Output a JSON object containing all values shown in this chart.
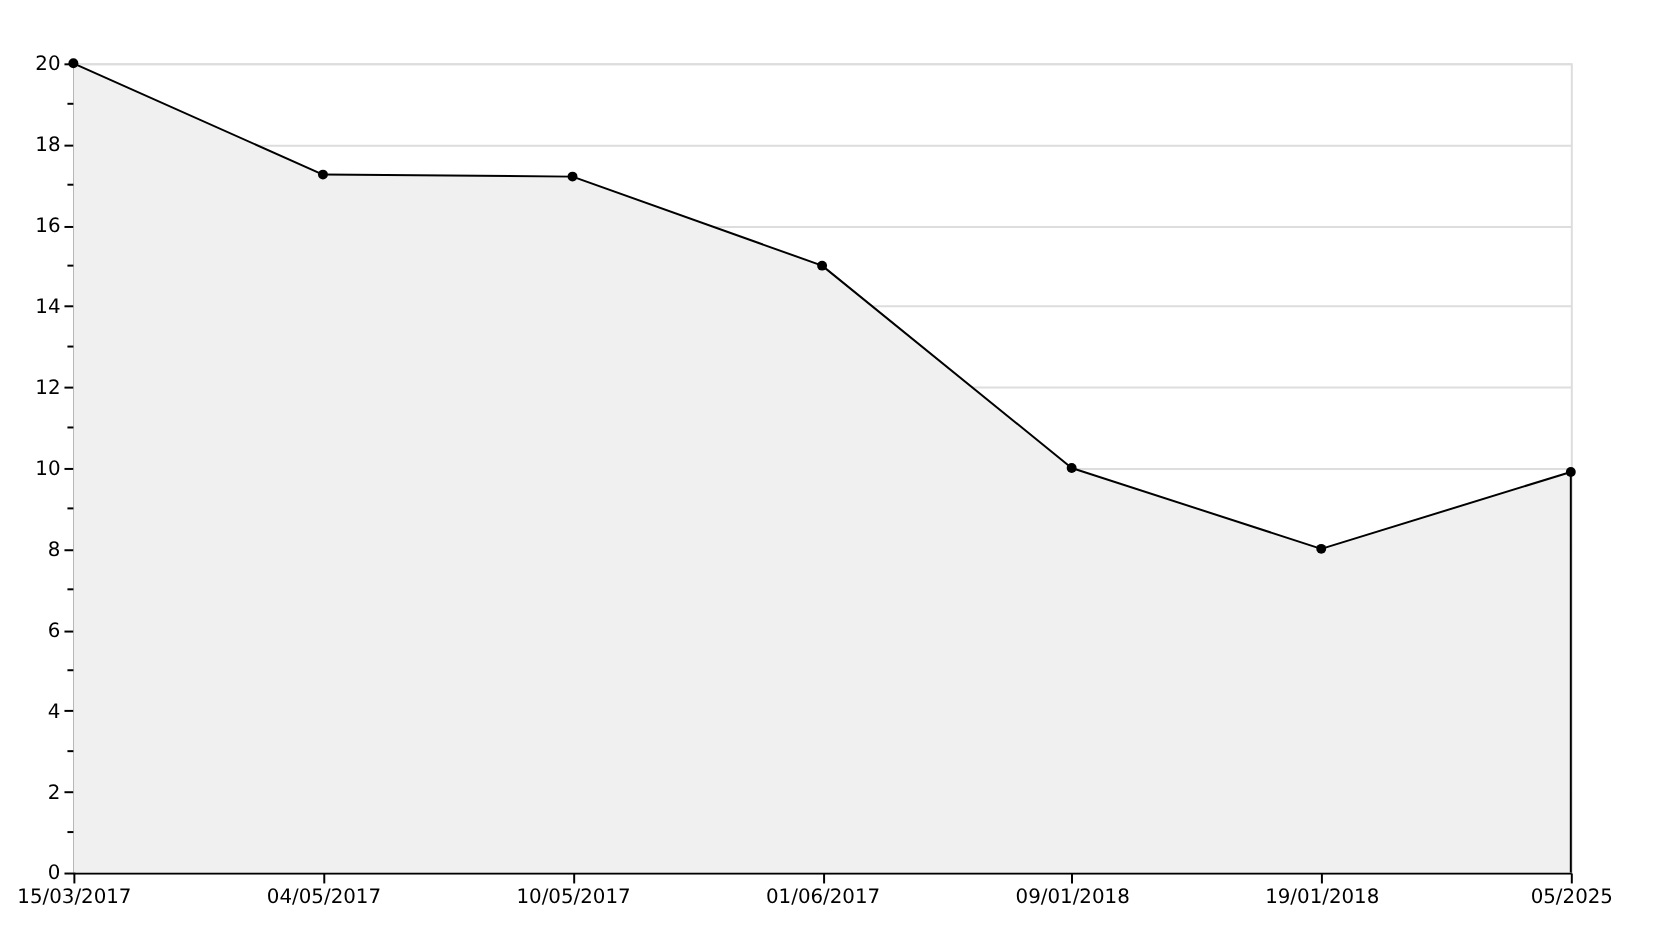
{
  "chart_data": {
    "type": "area",
    "categories": [
      "15/03/2017",
      "04/05/2017",
      "10/05/2017",
      "01/06/2017",
      "09/01/2018",
      "19/01/2018",
      "05/2025"
    ],
    "series": [
      {
        "color": "#000000",
        "values": [
          20,
          17.25,
          17.2,
          15,
          10,
          8,
          9.9
        ]
      }
    ],
    "ylim": [
      0,
      20
    ],
    "yticks": [
      0,
      {
        "value": 1,
        "label": null
      },
      2,
      {
        "value": 3,
        "label": null
      },
      4,
      {
        "value": 5,
        "label": null
      },
      6,
      {
        "value": 7,
        "label": null
      },
      8,
      {
        "value": 9,
        "label": null
      },
      10,
      {
        "value": 11,
        "label": null
      },
      12,
      {
        "value": 13,
        "label": null
      },
      14,
      {
        "value": 15,
        "label": null
      },
      16,
      {
        "value": 17,
        "label": null
      },
      18,
      {
        "value": 19,
        "label": null
      },
      20
    ],
    "grid": "y",
    "marker": "circle",
    "line_style": "solid"
  }
}
